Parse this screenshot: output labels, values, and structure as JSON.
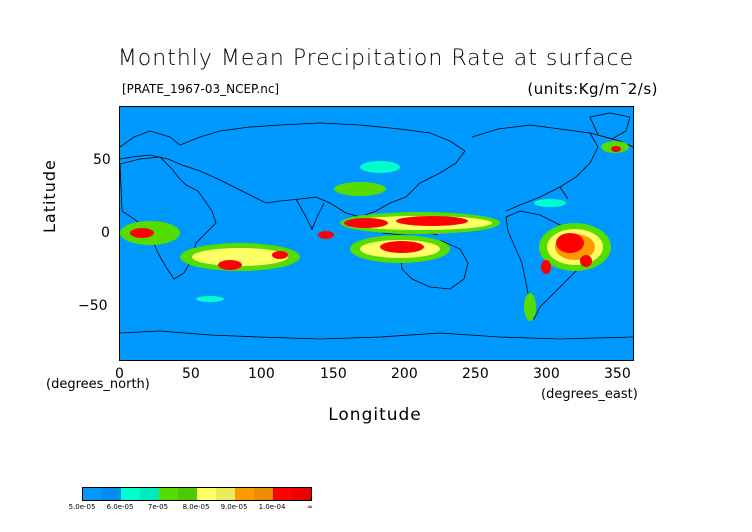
{
  "title": "Monthly Mean Precipitation Rate at surface",
  "source_file": "[PRATE_1967-03_NCEP.nc]",
  "units": "(units:Kg/m^-2/s)",
  "units_display": "(units:Kg/m¯2/s)",
  "x_axis": {
    "label": "Longitude",
    "caption": "(degrees_east)",
    "ticks": [
      "0",
      "50",
      "100",
      "150",
      "200",
      "250",
      "300",
      "350"
    ],
    "range": [
      0,
      360
    ]
  },
  "y_axis": {
    "label": "Latitude",
    "caption": "(degrees_north)",
    "ticks": [
      "50",
      "0",
      "−50"
    ],
    "range": [
      -90,
      90
    ]
  },
  "legend": {
    "colors": [
      "#0099ff",
      "#00ffcc",
      "#55dd00",
      "#ffff66",
      "#ff9900",
      "#ff0000"
    ],
    "labels": [
      "5.0e-05",
      "6.0e-05",
      "7e-05",
      "8.0e-05",
      "9.0e-05",
      "1.0e-04",
      "∞"
    ]
  }
}
